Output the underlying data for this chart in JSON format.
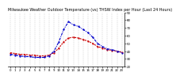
{
  "title": "Milwaukee Weather Outdoor Temperature (vs) THSW Index per Hour (Last 24 Hours)",
  "x_hours": [
    0,
    1,
    2,
    3,
    4,
    5,
    6,
    7,
    8,
    9,
    10,
    11,
    12,
    13,
    14,
    15,
    16,
    17,
    18,
    19,
    20,
    21,
    22,
    23
  ],
  "temp": [
    38,
    37,
    36,
    36,
    35,
    35,
    34,
    34,
    35,
    38,
    44,
    52,
    57,
    58,
    57,
    55,
    53,
    50,
    46,
    44,
    42,
    41,
    40,
    39
  ],
  "thsw": [
    36,
    35,
    34,
    33,
    33,
    32,
    32,
    32,
    34,
    40,
    52,
    68,
    78,
    74,
    72,
    68,
    64,
    58,
    50,
    46,
    43,
    42,
    40,
    38
  ],
  "temp_color": "#cc0000",
  "thsw_color": "#0000cc",
  "bg_color": "#ffffff",
  "grid_color": "#aaaaaa",
  "ylim_min": 20,
  "ylim_max": 90,
  "yticks": [
    20,
    30,
    40,
    50,
    60,
    70,
    80,
    90
  ],
  "title_fontsize": 3.5,
  "tick_fontsize": 2.8,
  "line_width": 0.8,
  "dash_pattern_temp": [
    2,
    1
  ],
  "dash_pattern_thsw": [
    3,
    1,
    1,
    1
  ]
}
